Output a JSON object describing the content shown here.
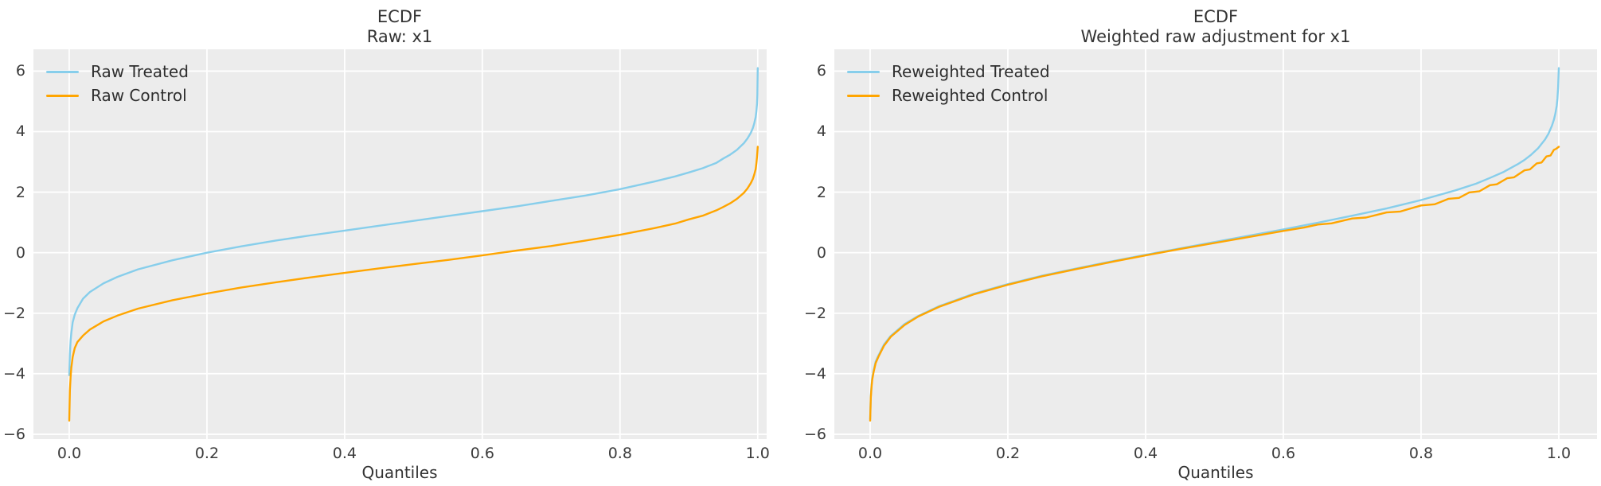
{
  "figure": {
    "background": "#ffffff",
    "plot_background": "#ececec",
    "grid_color": "#ffffff",
    "grid_line_width": 1.8,
    "line_width": 2.4,
    "text_color": "#333333",
    "treated_color": "#87ceeb",
    "control_color": "#ffa500"
  },
  "chart_data": [
    {
      "type": "line",
      "title": "ECDF",
      "subtitle": "Raw: x1",
      "xlabel": "Quantiles",
      "grid": true,
      "legend_position": "upper-left",
      "xlim": [
        -0.052,
        1.013
      ],
      "ylim": [
        -6.16,
        6.72
      ],
      "x_ticks": [
        0.0,
        0.2,
        0.4,
        0.6,
        0.8,
        1.0
      ],
      "x_tick_labels": [
        "0.0",
        "0.2",
        "0.4",
        "0.6",
        "0.8",
        "1.0"
      ],
      "y_ticks": [
        6,
        4,
        2,
        0,
        -2,
        -4,
        -6
      ],
      "y_tick_labels": [
        "6",
        "4",
        "2",
        "0",
        "−2",
        "−4",
        "−6"
      ],
      "series": [
        {
          "name": "Raw Treated",
          "color": "#87ceeb",
          "points": [
            [
              0,
              -4.05
            ],
            [
              0.001,
              -3.35
            ],
            [
              0.002,
              -2.9
            ],
            [
              0.003,
              -2.65
            ],
            [
              0.005,
              -2.3
            ],
            [
              0.008,
              -2.05
            ],
            [
              0.012,
              -1.83
            ],
            [
              0.02,
              -1.52
            ],
            [
              0.03,
              -1.3
            ],
            [
              0.05,
              -1.01
            ],
            [
              0.07,
              -0.8
            ],
            [
              0.1,
              -0.55
            ],
            [
              0.15,
              -0.25
            ],
            [
              0.2,
              0.0
            ],
            [
              0.25,
              0.21
            ],
            [
              0.3,
              0.4
            ],
            [
              0.35,
              0.57
            ],
            [
              0.4,
              0.73
            ],
            [
              0.45,
              0.89
            ],
            [
              0.5,
              1.05
            ],
            [
              0.55,
              1.21
            ],
            [
              0.6,
              1.37
            ],
            [
              0.65,
              1.53
            ],
            [
              0.7,
              1.71
            ],
            [
              0.75,
              1.89
            ],
            [
              0.8,
              2.1
            ],
            [
              0.85,
              2.35
            ],
            [
              0.88,
              2.52
            ],
            [
              0.9,
              2.65
            ],
            [
              0.92,
              2.79
            ],
            [
              0.94,
              2.97
            ],
            [
              0.95,
              3.11
            ],
            [
              0.96,
              3.24
            ],
            [
              0.97,
              3.4
            ],
            [
              0.98,
              3.62
            ],
            [
              0.985,
              3.77
            ],
            [
              0.99,
              3.96
            ],
            [
              0.993,
              4.12
            ],
            [
              0.995,
              4.27
            ],
            [
              0.997,
              4.48
            ],
            [
              0.998,
              4.65
            ],
            [
              0.999,
              4.92
            ],
            [
              0.9995,
              5.2
            ],
            [
              1.0,
              6.1
            ]
          ]
        },
        {
          "name": "Raw Control",
          "color": "#ffa500",
          "points": [
            [
              0,
              -5.55
            ],
            [
              0.001,
              -4.55
            ],
            [
              0.002,
              -4.1
            ],
            [
              0.003,
              -3.8
            ],
            [
              0.005,
              -3.45
            ],
            [
              0.008,
              -3.15
            ],
            [
              0.012,
              -2.95
            ],
            [
              0.02,
              -2.74
            ],
            [
              0.03,
              -2.54
            ],
            [
              0.05,
              -2.27
            ],
            [
              0.07,
              -2.08
            ],
            [
              0.1,
              -1.85
            ],
            [
              0.15,
              -1.57
            ],
            [
              0.2,
              -1.35
            ],
            [
              0.25,
              -1.15
            ],
            [
              0.3,
              -0.98
            ],
            [
              0.35,
              -0.82
            ],
            [
              0.4,
              -0.67
            ],
            [
              0.45,
              -0.52
            ],
            [
              0.5,
              -0.38
            ],
            [
              0.55,
              -0.24
            ],
            [
              0.6,
              -0.09
            ],
            [
              0.65,
              0.07
            ],
            [
              0.7,
              0.22
            ],
            [
              0.75,
              0.4
            ],
            [
              0.8,
              0.59
            ],
            [
              0.85,
              0.81
            ],
            [
              0.88,
              0.96
            ],
            [
              0.9,
              1.1
            ],
            [
              0.92,
              1.22
            ],
            [
              0.94,
              1.4
            ],
            [
              0.95,
              1.51
            ],
            [
              0.96,
              1.63
            ],
            [
              0.97,
              1.78
            ],
            [
              0.98,
              1.98
            ],
            [
              0.985,
              2.12
            ],
            [
              0.99,
              2.3
            ],
            [
              0.993,
              2.44
            ],
            [
              0.995,
              2.58
            ],
            [
              0.997,
              2.76
            ],
            [
              0.998,
              2.93
            ],
            [
              0.999,
              3.17
            ],
            [
              1.0,
              3.5
            ]
          ]
        }
      ]
    },
    {
      "type": "line",
      "title": "ECDF",
      "subtitle": "Weighted raw adjustment for x1",
      "xlabel": "Quantiles",
      "grid": true,
      "legend_position": "upper-left",
      "xlim": [
        -0.052,
        1.0555
      ],
      "ylim": [
        -6.16,
        6.72
      ],
      "x_ticks": [
        0.0,
        0.2,
        0.4,
        0.6,
        0.8,
        1.0
      ],
      "x_tick_labels": [
        "0.0",
        "0.2",
        "0.4",
        "0.6",
        "0.8",
        "1.0"
      ],
      "y_ticks": [
        6,
        4,
        2,
        0,
        -2,
        -4,
        -6
      ],
      "y_tick_labels": [
        "6",
        "4",
        "2",
        "0",
        "−2",
        "−4",
        "−6"
      ],
      "series": [
        {
          "name": "Reweighted Treated",
          "color": "#87ceeb",
          "points": [
            [
              0,
              -5.5
            ],
            [
              0.001,
              -4.75
            ],
            [
              0.002,
              -4.4
            ],
            [
              0.003,
              -4.15
            ],
            [
              0.005,
              -3.9
            ],
            [
              0.008,
              -3.6
            ],
            [
              0.012,
              -3.4
            ],
            [
              0.02,
              -3.04
            ],
            [
              0.03,
              -2.75
            ],
            [
              0.05,
              -2.36
            ],
            [
              0.07,
              -2.09
            ],
            [
              0.1,
              -1.77
            ],
            [
              0.15,
              -1.36
            ],
            [
              0.2,
              -1.04
            ],
            [
              0.25,
              -0.76
            ],
            [
              0.3,
              -0.52
            ],
            [
              0.35,
              -0.29
            ],
            [
              0.4,
              -0.07
            ],
            [
              0.45,
              0.14
            ],
            [
              0.5,
              0.35
            ],
            [
              0.55,
              0.56
            ],
            [
              0.6,
              0.77
            ],
            [
              0.65,
              0.99
            ],
            [
              0.7,
              1.22
            ],
            [
              0.75,
              1.46
            ],
            [
              0.8,
              1.74
            ],
            [
              0.85,
              2.06
            ],
            [
              0.88,
              2.28
            ],
            [
              0.9,
              2.47
            ],
            [
              0.92,
              2.67
            ],
            [
              0.94,
              2.92
            ],
            [
              0.95,
              3.06
            ],
            [
              0.96,
              3.24
            ],
            [
              0.97,
              3.45
            ],
            [
              0.98,
              3.74
            ],
            [
              0.985,
              3.93
            ],
            [
              0.99,
              4.19
            ],
            [
              0.993,
              4.4
            ],
            [
              0.995,
              4.6
            ],
            [
              0.997,
              4.86
            ],
            [
              0.998,
              5.1
            ],
            [
              0.999,
              5.45
            ],
            [
              1.0,
              6.1
            ]
          ]
        },
        {
          "name": "Reweighted Control",
          "color": "#ffa500",
          "points": [
            [
              0,
              -5.55
            ],
            [
              0.001,
              -4.8
            ],
            [
              0.002,
              -4.45
            ],
            [
              0.003,
              -4.2
            ],
            [
              0.005,
              -3.95
            ],
            [
              0.008,
              -3.65
            ],
            [
              0.012,
              -3.44
            ],
            [
              0.02,
              -3.08
            ],
            [
              0.03,
              -2.78
            ],
            [
              0.05,
              -2.39
            ],
            [
              0.07,
              -2.11
            ],
            [
              0.1,
              -1.79
            ],
            [
              0.15,
              -1.38
            ],
            [
              0.2,
              -1.06
            ],
            [
              0.25,
              -0.78
            ],
            [
              0.3,
              -0.54
            ],
            [
              0.35,
              -0.31
            ],
            [
              0.4,
              -0.09
            ],
            [
              0.45,
              0.12
            ],
            [
              0.5,
              0.32
            ],
            [
              0.55,
              0.52
            ],
            [
              0.6,
              0.72
            ],
            [
              0.63,
              0.83
            ],
            [
              0.65,
              0.93
            ],
            [
              0.67,
              0.97
            ],
            [
              0.7,
              1.13
            ],
            [
              0.72,
              1.16
            ],
            [
              0.75,
              1.33
            ],
            [
              0.77,
              1.36
            ],
            [
              0.8,
              1.56
            ],
            [
              0.82,
              1.6
            ],
            [
              0.84,
              1.78
            ],
            [
              0.855,
              1.81
            ],
            [
              0.87,
              1.99
            ],
            [
              0.885,
              2.03
            ],
            [
              0.9,
              2.23
            ],
            [
              0.91,
              2.26
            ],
            [
              0.925,
              2.46
            ],
            [
              0.935,
              2.49
            ],
            [
              0.95,
              2.72
            ],
            [
              0.958,
              2.75
            ],
            [
              0.968,
              2.95
            ],
            [
              0.975,
              2.98
            ],
            [
              0.982,
              3.18
            ],
            [
              0.988,
              3.21
            ],
            [
              0.993,
              3.4
            ],
            [
              0.996,
              3.43
            ],
            [
              1.0,
              3.5
            ]
          ]
        }
      ]
    }
  ]
}
